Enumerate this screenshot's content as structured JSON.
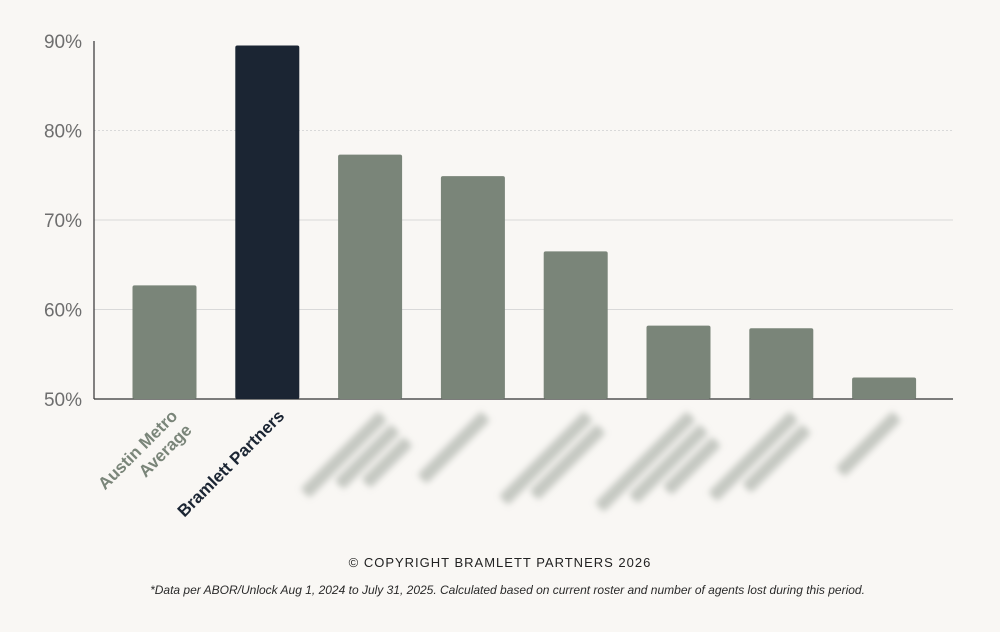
{
  "chart_data": {
    "type": "bar",
    "categories": [
      "Austin Metro Average",
      "Bramlett Partners",
      "",
      "",
      "",
      "",
      "",
      ""
    ],
    "values": [
      62.7,
      89.5,
      77.3,
      74.9,
      66.5,
      58.2,
      57.9,
      52.4
    ],
    "highlight_index": 1,
    "redacted_label_indices": [
      2,
      3,
      4,
      5,
      6,
      7
    ],
    "ylim": [
      50,
      90
    ],
    "yticks": [
      50,
      60,
      70,
      80,
      90
    ],
    "ytick_labels": [
      "50%",
      "60%",
      "70%",
      "80%",
      "90%"
    ],
    "grid": true,
    "colors": {
      "bar": "#7a8579",
      "highlight": "#1b2533",
      "grid": "#d9d9d9",
      "axis": "#333333",
      "category_label": "#7a8579",
      "highlight_label": "#1b2533"
    }
  },
  "footer": {
    "copyright": "© COPYRIGHT BRAMLETT PARTNERS 2026",
    "footnote": "*Data per ABOR/Unlock Aug 1, 2024 to July 31, 2025. Calculated based on current roster and number of agents lost during this period."
  }
}
